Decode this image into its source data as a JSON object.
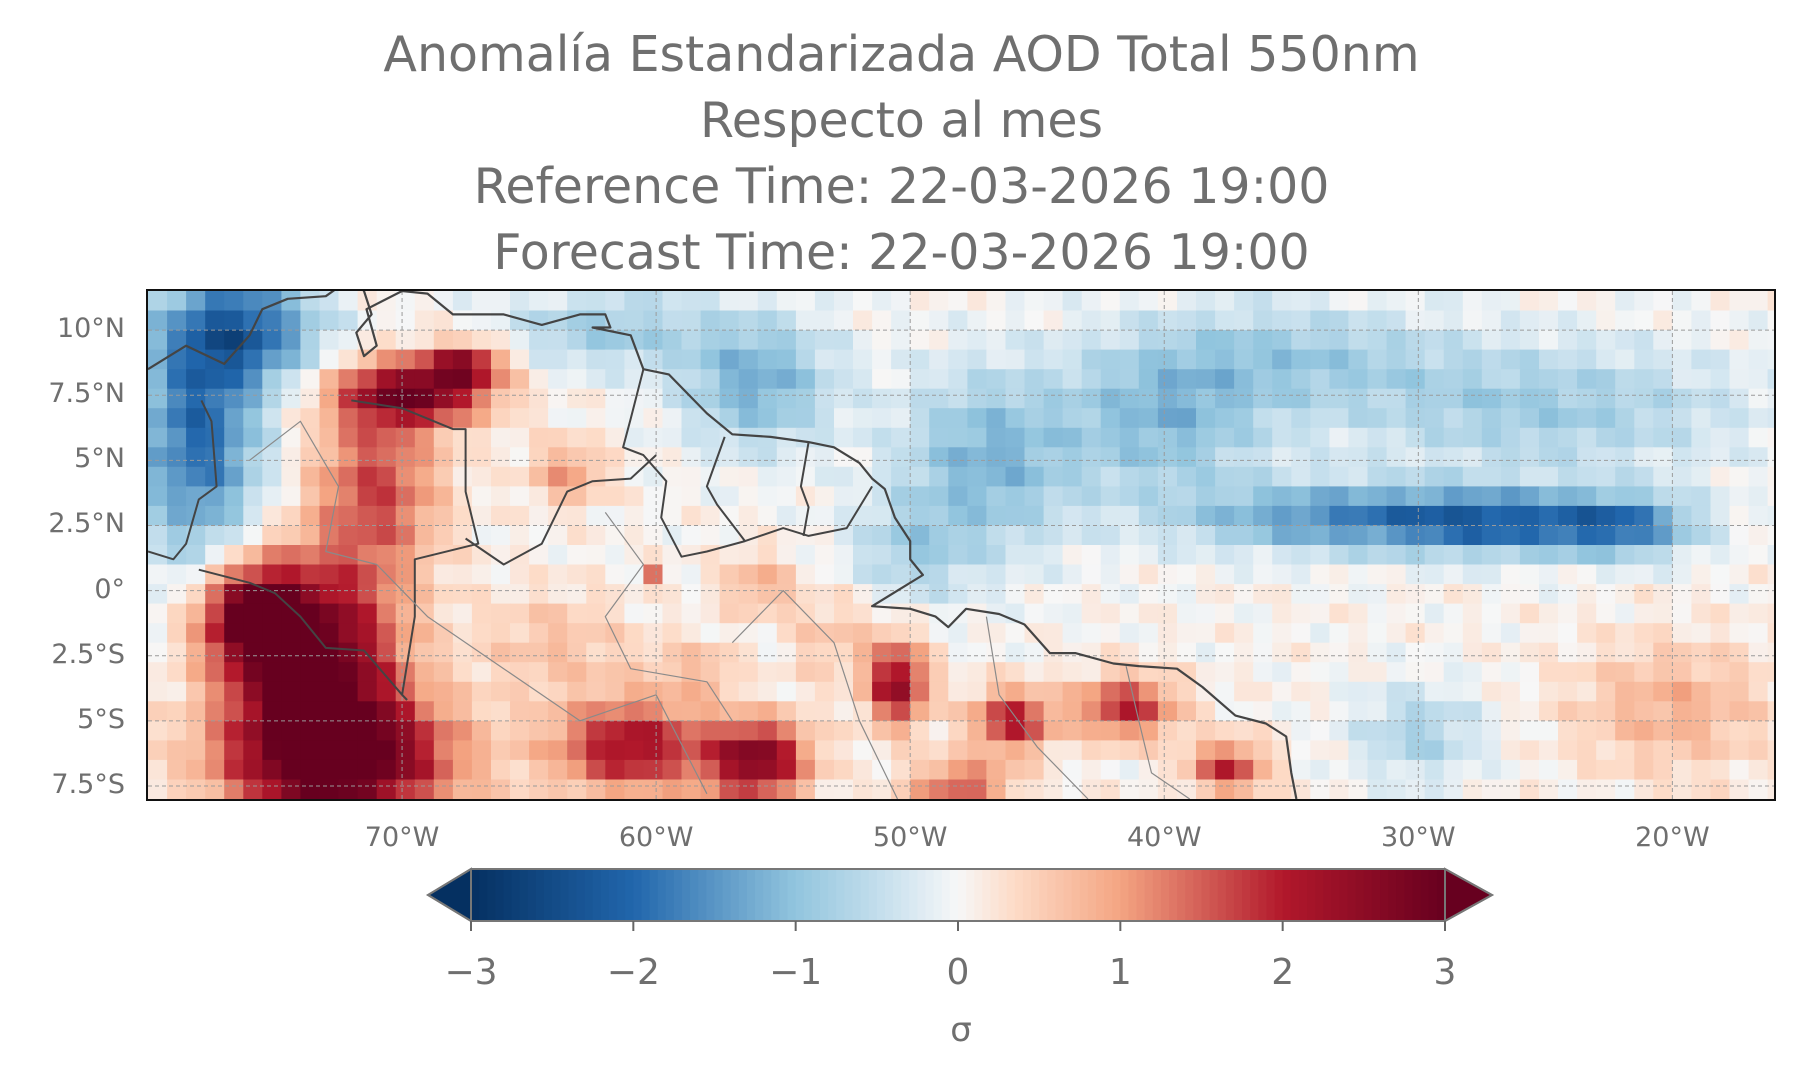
{
  "title": {
    "line1": "Anomalía Estandarizada AOD Total 550nm",
    "line2": "Respecto al mes",
    "line3": "Reference Time: 22-03-2026 19:00",
    "line4": "Forecast Time: 22-03-2026 19:00"
  },
  "map": {
    "extent": {
      "lon": [
        -80,
        -16
      ],
      "lat": [
        -8,
        11.5
      ]
    },
    "lat_labels": [
      "10°N",
      "7.5°N",
      "5°N",
      "2.5°N",
      "0°",
      "2.5°S",
      "5°S",
      "7.5°S"
    ],
    "lon_labels": [
      "70°W",
      "60°W",
      "50°W",
      "40°W",
      "30°W",
      "20°W"
    ],
    "gridlines": "dashed",
    "colormap": "RdBu_r",
    "colors": {
      "deep_blue": "#053061",
      "blue": "#2166ac",
      "light_blue": "#92c5de",
      "neutral": "#f7f7f7",
      "light_red": "#f4a582",
      "red": "#b2182b",
      "deep_red": "#67001f",
      "coastline": "#444444",
      "borders": "#8a8a8a"
    }
  },
  "colorbar": {
    "ticks": [
      "−3",
      "−2",
      "−1",
      "0",
      "1",
      "2",
      "3"
    ],
    "range": [
      -3,
      3
    ],
    "extend": "both",
    "label": "σ"
  }
}
